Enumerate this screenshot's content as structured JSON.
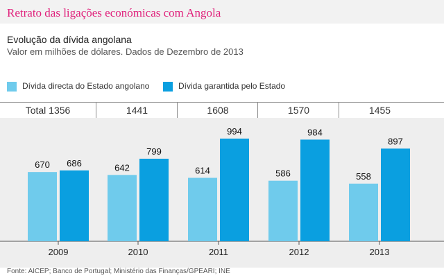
{
  "header": {
    "title": "Retrato das ligações económicas com Angola"
  },
  "chart_data": {
    "type": "bar",
    "title": "Evolução da dívida angolana",
    "subtitle": "Valor em milhões de dólares. Dados de Dezembro de 2013",
    "categories": [
      "2009",
      "2010",
      "2011",
      "2012",
      "2013"
    ],
    "series": [
      {
        "name": "Dívida directa do Estado angolano",
        "color": "#6fcbec",
        "values": [
          670,
          642,
          614,
          586,
          558
        ]
      },
      {
        "name": "Dívida garantida pelo Estado",
        "color": "#0a9fe0",
        "values": [
          686,
          799,
          994,
          984,
          897
        ]
      }
    ],
    "totals_prefix": "Total",
    "totals": [
      1356,
      1441,
      1608,
      1570,
      1455
    ],
    "ylim": [
      0,
      1000
    ],
    "xlabel": "",
    "ylabel": "",
    "grid": false,
    "legend_position": "top-left"
  },
  "source": "Fonte: AICEP; Banco de Portugal; Ministério das Finanças/GPEARI; INE"
}
